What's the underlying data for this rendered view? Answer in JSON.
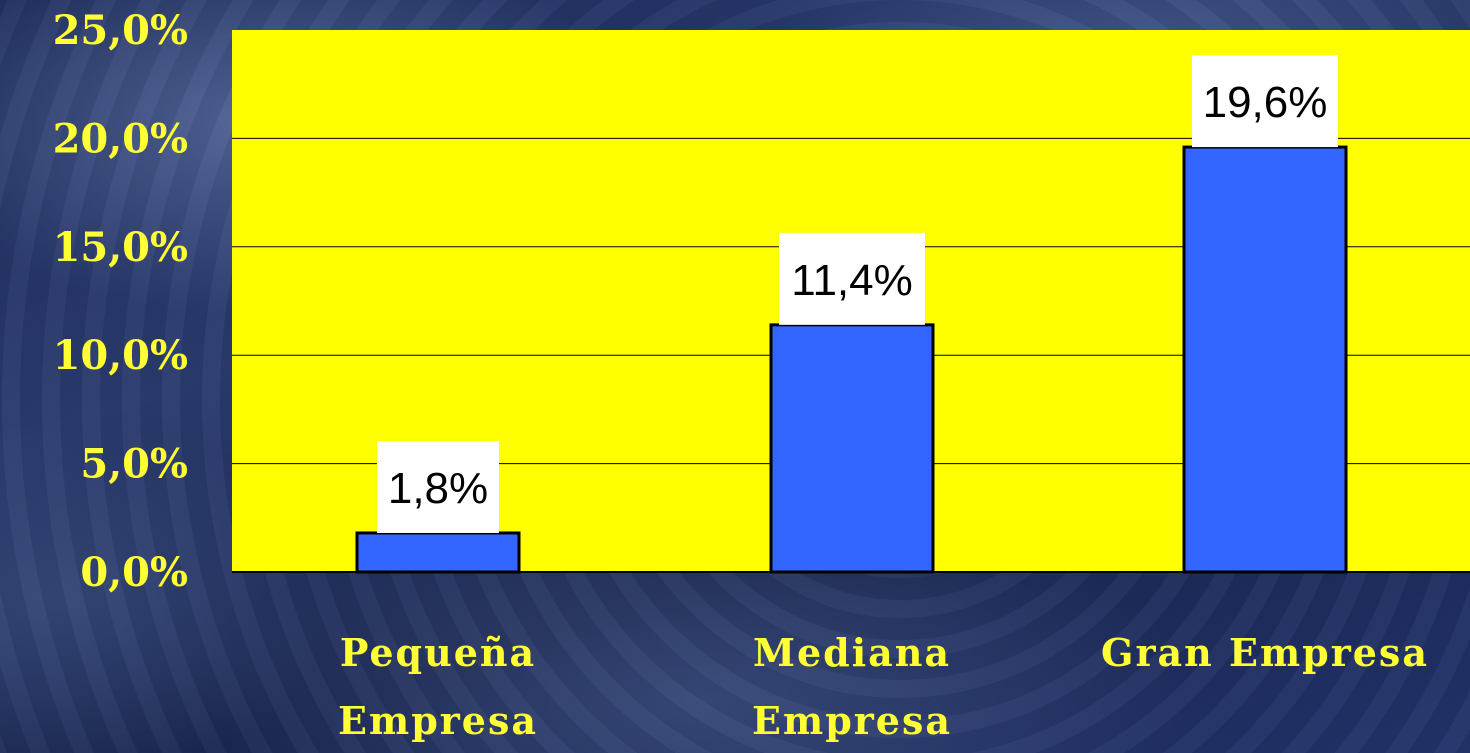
{
  "chart_data": {
    "type": "bar",
    "categories": [
      [
        "Pequeña",
        "Empresa"
      ],
      [
        "Mediana",
        "Empresa"
      ],
      [
        "Gran Empresa"
      ]
    ],
    "values": [
      1.8,
      11.4,
      19.6
    ],
    "value_labels": [
      "1,8%",
      "11,4%",
      "19,6%"
    ],
    "ylim": [
      0,
      25
    ],
    "y_ticks": [
      {
        "value": 0,
        "label": "0,0%"
      },
      {
        "value": 5,
        "label": "5,0%"
      },
      {
        "value": 10,
        "label": "10,0%"
      },
      {
        "value": 15,
        "label": "15,0%"
      },
      {
        "value": 20,
        "label": "20,0%"
      },
      {
        "value": 25,
        "label": "25,0%"
      }
    ],
    "grid": true,
    "colors": {
      "plot_background": "#ffff00",
      "bar_fill": "#3366ff",
      "bar_stroke": "#000000",
      "label_background": "#ffffff",
      "tick_text": "#ffff33",
      "gridline": "#000000"
    }
  }
}
